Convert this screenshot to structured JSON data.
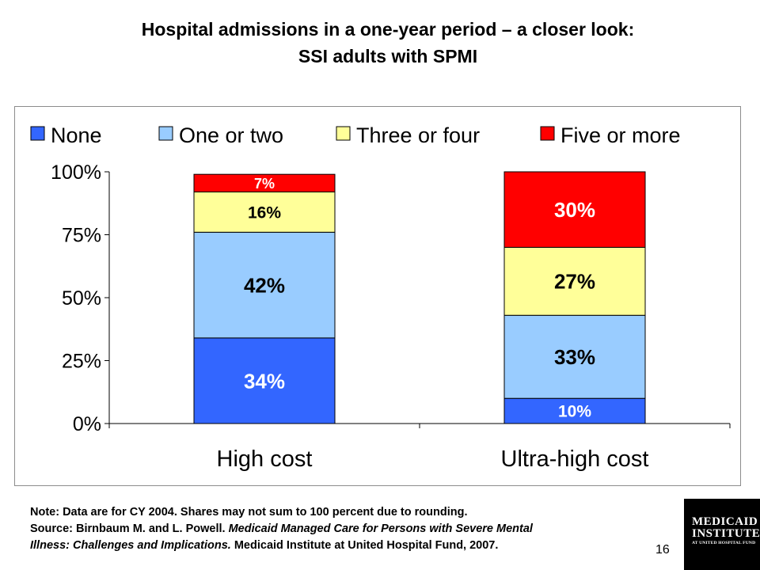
{
  "slide": {
    "title_line1": "Hospital admissions in a one-year period – a closer look:",
    "title_line2": "SSI adults with SPMI",
    "note": "Note:  Data are for CY 2004.  Shares may not sum to 100 percent due to rounding.",
    "source_prefix": "Source:  Birnbaum M. and L. Powell. ",
    "source_italic_1": "Medicaid Managed Care for Persons with Severe Mental",
    "source_italic_2": "Illness: Challenges and Implications.",
    "source_suffix": " Medicaid Institute at United Hospital Fund, 2007.",
    "page_number": "16",
    "logo_line1": "MEDICAID",
    "logo_line2": "INSTITUTE",
    "logo_line3": "AT UNITED HOSPITAL FUND"
  },
  "chart_data": {
    "type": "bar",
    "stacked": true,
    "percent_stacked": true,
    "categories": [
      "High cost",
      "Ultra-high cost"
    ],
    "series": [
      {
        "name": "None",
        "color": "#3366ff",
        "values": [
          34,
          10
        ],
        "labels": [
          "34%",
          "10%"
        ],
        "label_color": "#ffffff"
      },
      {
        "name": "One or two",
        "color": "#99ccff",
        "values": [
          42,
          33
        ],
        "labels": [
          "42%",
          "33%"
        ],
        "label_color": "#000000"
      },
      {
        "name": "Three or four",
        "color": "#ffff99",
        "values": [
          16,
          27
        ],
        "labels": [
          "16%",
          "27%"
        ],
        "label_color": "#000000"
      },
      {
        "name": "Five or more",
        "color": "#ff0000",
        "values": [
          7,
          30
        ],
        "labels": [
          "7%",
          "30%"
        ],
        "label_color": "#ffffff"
      }
    ],
    "y_ticks": [
      "0%",
      "25%",
      "50%",
      "75%",
      "100%"
    ],
    "ylim": [
      0,
      100
    ],
    "legend_position": "top",
    "grid": false
  }
}
